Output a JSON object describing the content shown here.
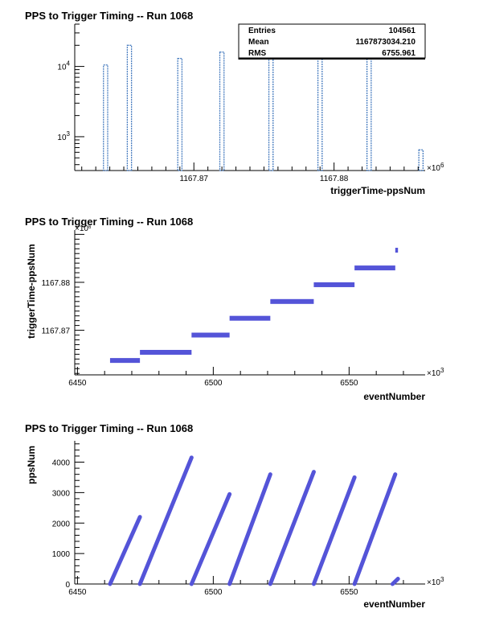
{
  "chart_data": [
    {
      "type": "bar",
      "title": "PPS to Trigger Timing -- Run 1068",
      "xlabel": "triggerTime-ppsNum",
      "ylabel": "",
      "x_exponent_label": "×10",
      "x_exponent_power": "6",
      "y_scale": "log",
      "xlim": [
        1167.8615,
        1167.8865
      ],
      "ylim": [
        330,
        40000
      ],
      "x_ticks": [
        {
          "value": 1167.87,
          "label": "1167.87"
        },
        {
          "value": 1167.88,
          "label": "1167.88"
        }
      ],
      "y_ticks": [
        {
          "value": 1000,
          "base": "10",
          "exp": "3"
        },
        {
          "value": 10000,
          "base": "10",
          "exp": "4"
        }
      ],
      "bin_width": 0.0003,
      "bins": [
        {
          "x": 1167.8637,
          "value": 10500
        },
        {
          "x": 1167.8654,
          "value": 20000
        },
        {
          "x": 1167.869,
          "value": 13000
        },
        {
          "x": 1167.872,
          "value": 16000
        },
        {
          "x": 1167.8755,
          "value": 15000
        },
        {
          "x": 1167.879,
          "value": 14200
        },
        {
          "x": 1167.8825,
          "value": 14500
        },
        {
          "x": 1167.8862,
          "value": 650
        }
      ],
      "stats": {
        "rows": [
          {
            "label": "Entries",
            "value": "104561"
          },
          {
            "label": "Mean",
            "value": "1167873034.210"
          },
          {
            "label": "RMS",
            "value": "6755.961"
          }
        ]
      },
      "grid": false,
      "fill_color": "#4a7ec0"
    },
    {
      "type": "scatter",
      "title": "PPS to Trigger Timing -- Run 1068",
      "xlabel": "eventNumber",
      "ylabel": "triggerTime-ppsNum",
      "x_exponent_label": "×10",
      "x_exponent_power": "3",
      "y_exponent_label": "×10",
      "y_exponent_power": "6",
      "xlim": [
        6449,
        6578
      ],
      "ylim": [
        1167.8607,
        1167.8909
      ],
      "x_ticks": [
        6450,
        6500,
        6550
      ],
      "y_ticks": [
        {
          "value": 1167.87,
          "label": "1167.87"
        },
        {
          "value": 1167.88,
          "label": "1167.88"
        }
      ],
      "segments": [
        {
          "x0": 6462,
          "x1": 6473,
          "y": 1167.8637
        },
        {
          "x0": 6473,
          "x1": 6492,
          "y": 1167.8654
        },
        {
          "x0": 6492,
          "x1": 6506,
          "y": 1167.869
        },
        {
          "x0": 6506,
          "x1": 6521,
          "y": 1167.8725
        },
        {
          "x0": 6521,
          "x1": 6537,
          "y": 1167.876
        },
        {
          "x0": 6537,
          "x1": 6552,
          "y": 1167.8795
        },
        {
          "x0": 6552,
          "x1": 6567,
          "y": 1167.883
        },
        {
          "x0": 6567,
          "x1": 6568,
          "y": 1167.8867
        }
      ],
      "grid": false,
      "marker_color": "#5454d8"
    },
    {
      "type": "scatter",
      "title": "PPS to Trigger Timing -- Run 1068",
      "xlabel": "eventNumber",
      "ylabel": "ppsNum",
      "x_exponent_label": "×10",
      "x_exponent_power": "3",
      "xlim": [
        6449,
        6578
      ],
      "ylim": [
        0,
        4700
      ],
      "x_ticks": [
        6450,
        6500,
        6550
      ],
      "y_ticks": [
        0,
        1000,
        2000,
        3000,
        4000
      ],
      "segments": [
        {
          "x0": 6462,
          "y0": 0,
          "x1": 6473,
          "y1": 2200
        },
        {
          "x0": 6473,
          "y0": 0,
          "x1": 6492,
          "y1": 4150
        },
        {
          "x0": 6492,
          "y0": 0,
          "x1": 6506,
          "y1": 2950
        },
        {
          "x0": 6506,
          "y0": 0,
          "x1": 6521,
          "y1": 3600
        },
        {
          "x0": 6521,
          "y0": 0,
          "x1": 6537,
          "y1": 3680
        },
        {
          "x0": 6537,
          "y0": 0,
          "x1": 6552,
          "y1": 3500
        },
        {
          "x0": 6552,
          "y0": 0,
          "x1": 6567,
          "y1": 3600
        },
        {
          "x0": 6566,
          "y0": 0,
          "x1": 6568,
          "y1": 170
        }
      ],
      "grid": false,
      "marker_color": "#5454d8"
    }
  ]
}
